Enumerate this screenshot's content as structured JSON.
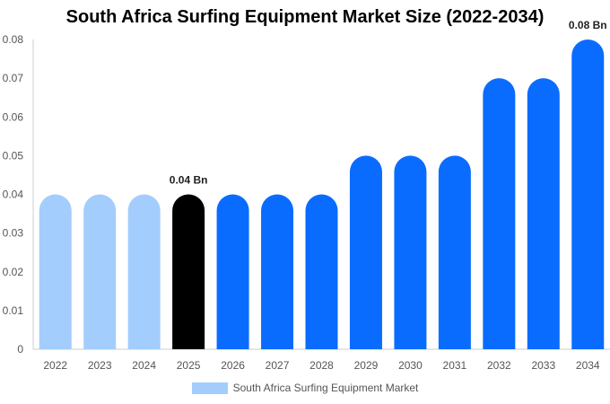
{
  "chart_data": {
    "type": "bar",
    "title": "South Africa Surfing Equipment Market Size (2022-2034)",
    "categories": [
      "2022",
      "2023",
      "2024",
      "2025",
      "2026",
      "2027",
      "2028",
      "2029",
      "2030",
      "2031",
      "2032",
      "2033",
      "2034"
    ],
    "series": [
      {
        "name": "South Africa Surfing Equipment Market",
        "values": [
          0.04,
          0.04,
          0.04,
          0.04,
          0.04,
          0.04,
          0.04,
          0.05,
          0.05,
          0.05,
          0.07,
          0.07,
          0.08
        ]
      }
    ],
    "bar_colors": [
      "#a3cdfd",
      "#a3cdfd",
      "#a3cdfd",
      "#000000",
      "#0a6cff",
      "#0a6cff",
      "#0a6cff",
      "#0a6cff",
      "#0a6cff",
      "#0a6cff",
      "#0a6cff",
      "#0a6cff",
      "#0a6cff"
    ],
    "y_ticks": [
      "0",
      "0.01",
      "0.02",
      "0.03",
      "0.04",
      "0.05",
      "0.06",
      "0.07",
      "0.08"
    ],
    "ylim": [
      0,
      0.08
    ],
    "data_labels": [
      {
        "category": "2025",
        "text": "0.04 Bn"
      },
      {
        "category": "2034",
        "text": "0.08 Bn"
      }
    ],
    "legend": {
      "position": "bottom",
      "color": "#a3cdfd"
    },
    "xlabel": "",
    "ylabel": "",
    "grid": false
  }
}
